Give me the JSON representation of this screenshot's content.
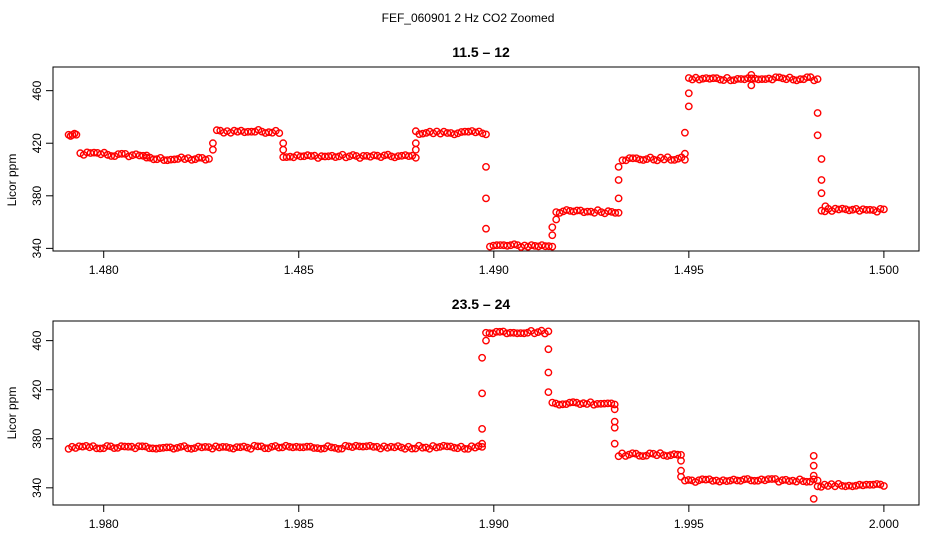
{
  "title": "FEF_060901  2 Hz CO2 Zoomed",
  "colors": {
    "points": "#ff0000"
  },
  "chart_data": [
    {
      "type": "scatter",
      "title": "11.5 – 12",
      "xlabel": "",
      "ylabel": "Licor ppm",
      "xlim": [
        1.4787,
        1.5009
      ],
      "ylim": [
        338,
        478
      ],
      "xticks": [
        "1.480",
        "1.485",
        "1.490",
        "1.495",
        "1.500"
      ],
      "xtick_values": [
        1.48,
        1.485,
        1.49,
        1.495,
        1.5
      ],
      "yticks": [
        "340",
        "380",
        "420",
        "460"
      ],
      "ytick_values": [
        340,
        380,
        420,
        460
      ],
      "marker": "open-circle",
      "segments": [
        {
          "x0": 1.4791,
          "x1": 1.4793,
          "y": 426
        },
        {
          "x0": 1.4794,
          "x1": 1.4801,
          "y": 412
        },
        {
          "x0": 1.4801,
          "x1": 1.4811,
          "y": 411
        },
        {
          "x0": 1.4811,
          "x1": 1.4827,
          "y": 408
        },
        {
          "x0": 1.4829,
          "x1": 1.4845,
          "y": 429
        },
        {
          "x0": 1.4846,
          "x1": 1.488,
          "y": 410
        },
        {
          "x0": 1.488,
          "x1": 1.4898,
          "y": 428
        },
        {
          "x0": 1.4899,
          "x1": 1.4915,
          "y": 342
        },
        {
          "x0": 1.4916,
          "x1": 1.4932,
          "y": 368
        },
        {
          "x0": 1.4933,
          "x1": 1.4949,
          "y": 408
        },
        {
          "x0": 1.495,
          "x1": 1.4983,
          "y": 469
        },
        {
          "x0": 1.4984,
          "x1": 1.5,
          "y": 369
        }
      ],
      "points": [
        {
          "x": 1.4828,
          "y": 415
        },
        {
          "x": 1.4828,
          "y": 420
        },
        {
          "x": 1.4846,
          "y": 420
        },
        {
          "x": 1.4846,
          "y": 415
        },
        {
          "x": 1.488,
          "y": 415
        },
        {
          "x": 1.488,
          "y": 420
        },
        {
          "x": 1.4898,
          "y": 402
        },
        {
          "x": 1.4898,
          "y": 378
        },
        {
          "x": 1.4898,
          "y": 355
        },
        {
          "x": 1.4915,
          "y": 350
        },
        {
          "x": 1.4915,
          "y": 356
        },
        {
          "x": 1.4916,
          "y": 362
        },
        {
          "x": 1.4932,
          "y": 378
        },
        {
          "x": 1.4932,
          "y": 392
        },
        {
          "x": 1.4932,
          "y": 402
        },
        {
          "x": 1.4949,
          "y": 428
        },
        {
          "x": 1.4949,
          "y": 412
        },
        {
          "x": 1.495,
          "y": 448
        },
        {
          "x": 1.495,
          "y": 458
        },
        {
          "x": 1.4966,
          "y": 464
        },
        {
          "x": 1.4966,
          "y": 472
        },
        {
          "x": 1.4983,
          "y": 443
        },
        {
          "x": 1.4983,
          "y": 426
        },
        {
          "x": 1.4984,
          "y": 408
        },
        {
          "x": 1.4984,
          "y": 392
        },
        {
          "x": 1.4984,
          "y": 382
        },
        {
          "x": 1.4985,
          "y": 372
        }
      ]
    },
    {
      "type": "scatter",
      "title": "23.5 – 24",
      "xlabel": "",
      "ylabel": "Licor ppm",
      "xlim": [
        1.9787,
        2.0009
      ],
      "ylim": [
        326,
        476
      ],
      "xticks": [
        "1.980",
        "1.985",
        "1.990",
        "1.995",
        "2.000"
      ],
      "xtick_values": [
        1.98,
        1.985,
        1.99,
        1.995,
        2.0
      ],
      "yticks": [
        "340",
        "380",
        "420",
        "460"
      ],
      "ytick_values": [
        340,
        380,
        420,
        460
      ],
      "marker": "open-circle",
      "segments": [
        {
          "x0": 1.9791,
          "x1": 1.9897,
          "y": 373
        },
        {
          "x0": 1.9898,
          "x1": 1.9914,
          "y": 467
        },
        {
          "x0": 1.9915,
          "x1": 1.9931,
          "y": 409
        },
        {
          "x0": 1.9932,
          "x1": 1.9948,
          "y": 367
        },
        {
          "x0": 1.9949,
          "x1": 1.9982,
          "y": 346
        },
        {
          "x0": 1.9983,
          "x1": 2.0,
          "y": 342
        }
      ],
      "points": [
        {
          "x": 1.9897,
          "y": 376
        },
        {
          "x": 1.9897,
          "y": 388
        },
        {
          "x": 1.9897,
          "y": 417
        },
        {
          "x": 1.9897,
          "y": 446
        },
        {
          "x": 1.9898,
          "y": 460
        },
        {
          "x": 1.9914,
          "y": 453
        },
        {
          "x": 1.9914,
          "y": 434
        },
        {
          "x": 1.9914,
          "y": 418
        },
        {
          "x": 1.9931,
          "y": 404
        },
        {
          "x": 1.9931,
          "y": 394
        },
        {
          "x": 1.9931,
          "y": 389
        },
        {
          "x": 1.9931,
          "y": 376
        },
        {
          "x": 1.9948,
          "y": 362
        },
        {
          "x": 1.9948,
          "y": 354
        },
        {
          "x": 1.9948,
          "y": 349
        },
        {
          "x": 1.9982,
          "y": 366
        },
        {
          "x": 1.9982,
          "y": 358
        },
        {
          "x": 1.9982,
          "y": 350
        },
        {
          "x": 1.9982,
          "y": 331
        },
        {
          "x": 1.9983,
          "y": 346
        }
      ]
    }
  ]
}
